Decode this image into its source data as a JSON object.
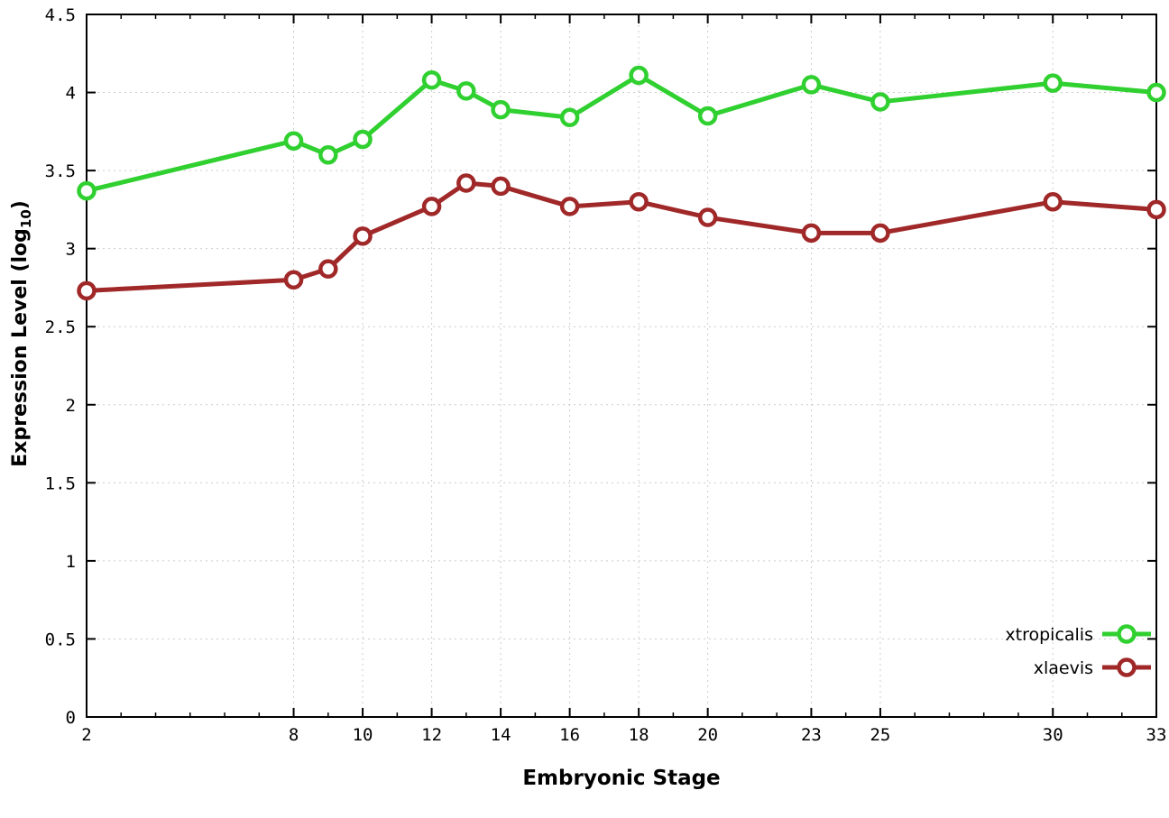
{
  "chart_data": {
    "type": "line",
    "title": "",
    "xlabel": "Embryonic Stage",
    "ylabel": {
      "main": "Expression Level (log",
      "sub": "10",
      "end": ")"
    },
    "xlim": [
      2,
      33
    ],
    "ylim": [
      0,
      4.5
    ],
    "grid": true,
    "legend_position": "bottom-right",
    "x": [
      2,
      8,
      9,
      10,
      12,
      13,
      14,
      16,
      18,
      20,
      23,
      25,
      30,
      33
    ],
    "x_ticks": [
      {
        "v": 2,
        "label": "2"
      },
      {
        "v": 8,
        "label": "8"
      },
      {
        "v": 10,
        "label": "10"
      },
      {
        "v": 12,
        "label": "12"
      },
      {
        "v": 14,
        "label": "14"
      },
      {
        "v": 16,
        "label": "16"
      },
      {
        "v": 18,
        "label": "18"
      },
      {
        "v": 20,
        "label": "20"
      },
      {
        "v": 23,
        "label": "23"
      },
      {
        "v": 25,
        "label": "25"
      },
      {
        "v": 30,
        "label": "30"
      },
      {
        "v": 33,
        "label": "33"
      }
    ],
    "y_ticks": [
      {
        "v": 0,
        "label": "0"
      },
      {
        "v": 0.5,
        "label": "0.5"
      },
      {
        "v": 1,
        "label": "1"
      },
      {
        "v": 1.5,
        "label": "1.5"
      },
      {
        "v": 2,
        "label": "2"
      },
      {
        "v": 2.5,
        "label": "2.5"
      },
      {
        "v": 3,
        "label": "3"
      },
      {
        "v": 3.5,
        "label": "3.5"
      },
      {
        "v": 4,
        "label": "4"
      },
      {
        "v": 4.5,
        "label": "4.5"
      }
    ],
    "series": [
      {
        "name": "xtropicalis",
        "color": "#2fd02f",
        "marker": "open-circle",
        "values": [
          3.37,
          3.69,
          3.6,
          3.7,
          4.08,
          4.01,
          3.89,
          3.84,
          4.11,
          3.85,
          4.05,
          3.94,
          4.06,
          4.0
        ]
      },
      {
        "name": "xlaevis",
        "color": "#a02828",
        "marker": "open-circle",
        "values": [
          2.73,
          2.8,
          2.87,
          3.08,
          3.27,
          3.42,
          3.4,
          3.27,
          3.3,
          3.2,
          3.1,
          3.1,
          3.3,
          3.25
        ]
      }
    ],
    "styles": {
      "grid_color": "#cccccc",
      "border_color": "#000000",
      "tick_label_color": "#000000",
      "background": "#ffffff"
    }
  }
}
